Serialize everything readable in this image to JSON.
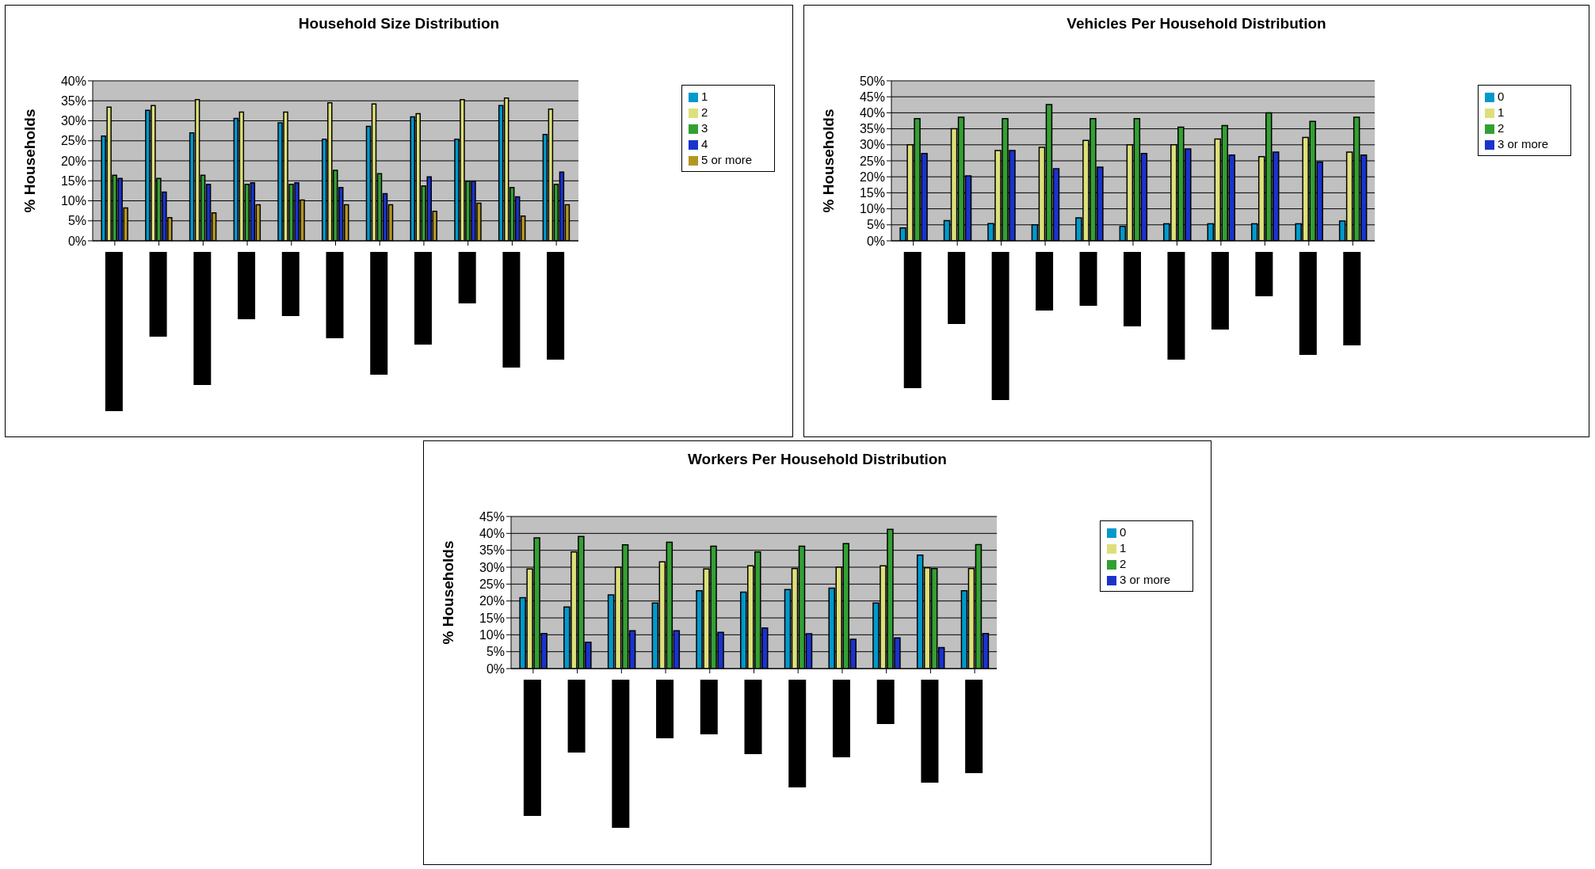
{
  "chart_data": [
    {
      "type": "bar",
      "title": "Household Size Distribution",
      "ylabel": "% Households",
      "categories": [
        null,
        null,
        null,
        null,
        null,
        null,
        null,
        null,
        null,
        null,
        null
      ],
      "series": [
        {
          "name": "1",
          "color": "#0099cc",
          "values": [
            26.2,
            32.6,
            27,
            30.6,
            29.5,
            25.4,
            28.6,
            31,
            25.4,
            33.8,
            26.6
          ]
        },
        {
          "name": "2",
          "color": "#dde07a",
          "values": [
            33.4,
            33.8,
            35.3,
            32.2,
            32.2,
            34.5,
            34.2,
            31.8,
            35.3,
            35.7,
            32.9
          ]
        },
        {
          "name": "3",
          "color": "#33a033",
          "values": [
            16.4,
            15.6,
            16.4,
            14.1,
            14.1,
            17.6,
            16.8,
            13.7,
            14.9,
            13.3,
            14.1
          ]
        },
        {
          "name": "4",
          "color": "#1a33cc",
          "values": [
            15.6,
            12.2,
            14.1,
            14.5,
            14.5,
            13.3,
            11.8,
            16,
            14.9,
            11,
            17.2
          ]
        },
        {
          "name": "5 or more",
          "color": "#b39622",
          "values": [
            8.2,
            5.8,
            7,
            9,
            10.2,
            9,
            9,
            7.4,
            9.4,
            6.2,
            9
          ]
        }
      ],
      "ylim": [
        0,
        40
      ],
      "yticks": [
        {
          "value": 0,
          "label": "0%"
        },
        {
          "value": 5,
          "label": "5%"
        },
        {
          "value": 10,
          "label": "10%"
        },
        {
          "value": 15,
          "label": "15%"
        },
        {
          "value": 20,
          "label": "20%"
        },
        {
          "value": 25,
          "label": "25%"
        },
        {
          "value": 30,
          "label": "30%"
        },
        {
          "value": 35,
          "label": "35%"
        },
        {
          "value": 40,
          "label": "40%"
        }
      ],
      "grid": "y",
      "legend": "right"
    },
    {
      "type": "bar",
      "title": "Vehicles Per Household Distribution",
      "ylabel": "% Households",
      "categories": [
        null,
        null,
        null,
        null,
        null,
        null,
        null,
        null,
        null,
        null,
        null
      ],
      "series": [
        {
          "name": "0",
          "color": "#0099cc",
          "values": [
            4,
            6.3,
            5.4,
            5,
            7.2,
            4.5,
            5.3,
            5.3,
            5.3,
            5.3,
            6.2
          ]
        },
        {
          "name": "1",
          "color": "#dde07a",
          "values": [
            30,
            35,
            28.2,
            29.2,
            31.4,
            30,
            30,
            31.8,
            26.3,
            32.3,
            27.7
          ]
        },
        {
          "name": "2",
          "color": "#33a033",
          "values": [
            38.2,
            38.6,
            38.2,
            42.6,
            38.2,
            38.2,
            35.5,
            36,
            40,
            37.3,
            38.6
          ]
        },
        {
          "name": "3 or more",
          "color": "#1a33cc",
          "values": [
            27.3,
            20.3,
            28.2,
            22.5,
            23,
            27.3,
            28.7,
            26.8,
            27.7,
            24.6,
            26.8
          ]
        }
      ],
      "ylim": [
        0,
        50
      ],
      "yticks": [
        {
          "value": 0,
          "label": "0%"
        },
        {
          "value": 5,
          "label": "5%"
        },
        {
          "value": 10,
          "label": "10%"
        },
        {
          "value": 15,
          "label": "15%"
        },
        {
          "value": 20,
          "label": "20%"
        },
        {
          "value": 25,
          "label": "25%"
        },
        {
          "value": 30,
          "label": "30%"
        },
        {
          "value": 35,
          "label": "35%"
        },
        {
          "value": 40,
          "label": "40%"
        },
        {
          "value": 45,
          "label": "45%"
        },
        {
          "value": 50,
          "label": "50%"
        }
      ],
      "grid": "y",
      "legend": "right"
    },
    {
      "type": "bar",
      "title": "Workers Per Household Distribution",
      "ylabel": "% Households",
      "categories": [
        null,
        null,
        null,
        null,
        null,
        null,
        null,
        null,
        null,
        null,
        null
      ],
      "series": [
        {
          "name": "0",
          "color": "#0099cc",
          "values": [
            21,
            18.2,
            21.8,
            19.4,
            23,
            22.6,
            23.4,
            23.8,
            19.4,
            33.6,
            23
          ]
        },
        {
          "name": "1",
          "color": "#dde07a",
          "values": [
            29.5,
            34.5,
            30,
            31.6,
            29.5,
            30.4,
            29.6,
            30,
            30.4,
            29.8,
            29.6
          ]
        },
        {
          "name": "2",
          "color": "#33a033",
          "values": [
            38.7,
            39.1,
            36.6,
            37.4,
            36.2,
            34.5,
            36.2,
            37,
            41.2,
            29.6,
            36.7
          ]
        },
        {
          "name": "3 or more",
          "color": "#1a33cc",
          "values": [
            10.4,
            7.8,
            11.2,
            11.2,
            10.7,
            12,
            10.3,
            8.7,
            9.1,
            6.2,
            10.4
          ]
        }
      ],
      "ylim": [
        0,
        45
      ],
      "yticks": [
        {
          "value": 0,
          "label": "0%"
        },
        {
          "value": 5,
          "label": "5%"
        },
        {
          "value": 10,
          "label": "10%"
        },
        {
          "value": 15,
          "label": "15%"
        },
        {
          "value": 20,
          "label": "20%"
        },
        {
          "value": 25,
          "label": "25%"
        },
        {
          "value": 30,
          "label": "30%"
        },
        {
          "value": 35,
          "label": "35%"
        },
        {
          "value": 40,
          "label": "40%"
        },
        {
          "value": 45,
          "label": "45%"
        }
      ],
      "grid": "y",
      "legend": "right"
    }
  ]
}
